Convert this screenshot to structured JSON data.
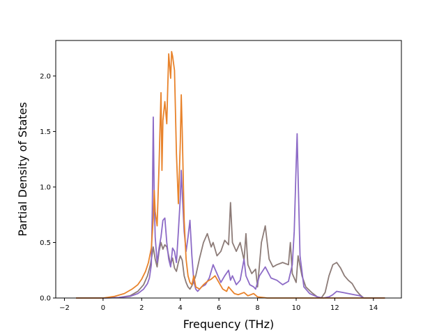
{
  "chart_data": {
    "type": "line",
    "xlabel": "Frequency (THz)",
    "ylabel": "Partial Density of States",
    "xlim": [
      -2.45,
      15.45
    ],
    "ylim": [
      0.0,
      2.32
    ],
    "grid": false,
    "xticks": [
      {
        "value": -2,
        "label": "−2"
      },
      {
        "value": 0,
        "label": "0"
      },
      {
        "value": 2,
        "label": "2"
      },
      {
        "value": 4,
        "label": "4"
      },
      {
        "value": 6,
        "label": "6"
      },
      {
        "value": 8,
        "label": "8"
      },
      {
        "value": 10,
        "label": "10"
      },
      {
        "value": 12,
        "label": "12"
      },
      {
        "value": 14,
        "label": "14"
      }
    ],
    "yticks": [
      {
        "value": 0.0,
        "label": "0.0"
      },
      {
        "value": 0.5,
        "label": "0.5"
      },
      {
        "value": 1.0,
        "label": "1.0"
      },
      {
        "value": 1.5,
        "label": "1.5"
      },
      {
        "value": 2.0,
        "label": "2.0"
      }
    ],
    "series": [
      {
        "color": "#8c7b77",
        "x": [
          -1.4,
          0,
          0.8,
          1.4,
          1.8,
          2.1,
          2.3,
          2.45,
          2.55,
          2.6,
          2.7,
          2.8,
          2.9,
          3.0,
          3.1,
          3.2,
          3.3,
          3.4,
          3.5,
          3.6,
          3.7,
          3.8,
          3.9,
          4.0,
          4.1,
          4.2,
          4.3,
          4.4,
          4.5,
          4.6,
          4.7,
          4.8,
          5.0,
          5.2,
          5.4,
          5.6,
          5.7,
          5.9,
          6.1,
          6.3,
          6.5,
          6.6,
          6.7,
          6.9,
          7.1,
          7.3,
          7.4,
          7.5,
          7.7,
          7.9,
          8.0,
          8.2,
          8.4,
          8.6,
          8.8,
          9.0,
          9.3,
          9.6,
          9.7,
          9.8,
          9.9,
          10.0,
          10.1,
          10.3,
          10.5,
          10.8,
          11.1,
          11.3,
          11.5,
          11.7,
          11.9,
          12.1,
          12.3,
          12.5,
          12.7,
          12.9,
          13.1,
          13.3,
          13.5,
          14.6
        ],
        "y": [
          0,
          0,
          0.004,
          0.02,
          0.06,
          0.12,
          0.2,
          0.3,
          0.4,
          0.46,
          0.35,
          0.28,
          0.42,
          0.5,
          0.44,
          0.48,
          0.46,
          0.38,
          0.3,
          0.36,
          0.27,
          0.24,
          0.32,
          0.38,
          0.34,
          0.2,
          0.14,
          0.1,
          0.08,
          0.11,
          0.15,
          0.2,
          0.36,
          0.5,
          0.58,
          0.46,
          0.5,
          0.38,
          0.42,
          0.52,
          0.48,
          0.86,
          0.5,
          0.42,
          0.5,
          0.34,
          0.58,
          0.3,
          0.22,
          0.26,
          0.1,
          0.5,
          0.65,
          0.35,
          0.28,
          0.3,
          0.32,
          0.3,
          0.5,
          0.22,
          0.18,
          0.14,
          0.38,
          0.2,
          0.1,
          0.05,
          0.01,
          0.0,
          0.05,
          0.2,
          0.3,
          0.32,
          0.27,
          0.2,
          0.16,
          0.13,
          0.07,
          0.03,
          0.0,
          0.0
        ]
      },
      {
        "color": "#8c6ac6",
        "x": [
          -1.4,
          0,
          0.8,
          1.4,
          1.8,
          2.1,
          2.3,
          2.4,
          2.5,
          2.55,
          2.6,
          2.65,
          2.7,
          2.8,
          2.9,
          3.0,
          3.1,
          3.2,
          3.3,
          3.4,
          3.5,
          3.6,
          3.7,
          3.8,
          3.9,
          4.0,
          4.05,
          4.1,
          4.2,
          4.3,
          4.4,
          4.5,
          4.6,
          4.7,
          4.8,
          4.9,
          5.1,
          5.3,
          5.5,
          5.7,
          5.9,
          6.1,
          6.3,
          6.5,
          6.6,
          6.7,
          6.9,
          7.1,
          7.3,
          7.4,
          7.6,
          7.8,
          7.9,
          8.1,
          8.4,
          8.7,
          9.0,
          9.3,
          9.6,
          9.8,
          9.9,
          10.0,
          10.05,
          10.1,
          10.2,
          10.4,
          10.7,
          11.1,
          11.4,
          11.7,
          11.9,
          12.1,
          12.4,
          12.7,
          13.0,
          13.3,
          13.5,
          14.6
        ],
        "y": [
          0,
          0,
          0.004,
          0.015,
          0.04,
          0.08,
          0.13,
          0.18,
          0.3,
          0.8,
          1.63,
          0.9,
          0.55,
          0.32,
          0.45,
          0.55,
          0.7,
          0.72,
          0.5,
          0.35,
          0.28,
          0.45,
          0.42,
          0.32,
          0.6,
          0.9,
          1.15,
          0.95,
          0.6,
          0.42,
          0.55,
          0.7,
          0.38,
          0.15,
          0.08,
          0.06,
          0.1,
          0.12,
          0.18,
          0.3,
          0.22,
          0.14,
          0.2,
          0.25,
          0.16,
          0.2,
          0.12,
          0.16,
          0.35,
          0.2,
          0.12,
          0.1,
          0.08,
          0.2,
          0.28,
          0.18,
          0.16,
          0.12,
          0.15,
          0.3,
          0.6,
          1.2,
          1.48,
          1.1,
          0.38,
          0.1,
          0.04,
          0.01,
          0.0,
          0.01,
          0.03,
          0.06,
          0.05,
          0.04,
          0.03,
          0.02,
          0.0,
          0.0
        ]
      },
      {
        "color": "#e8822a",
        "x": [
          -1.4,
          0,
          0.6,
          1.1,
          1.5,
          1.8,
          2.0,
          2.2,
          2.35,
          2.5,
          2.6,
          2.65,
          2.7,
          2.8,
          2.9,
          3.0,
          3.05,
          3.1,
          3.2,
          3.3,
          3.35,
          3.4,
          3.5,
          3.55,
          3.6,
          3.7,
          3.8,
          3.9,
          4.0,
          4.05,
          4.1,
          4.2,
          4.3,
          4.4,
          4.5,
          4.6,
          4.7,
          4.8,
          5.0,
          5.2,
          5.4,
          5.6,
          5.8,
          6.0,
          6.2,
          6.4,
          6.5,
          6.6,
          6.8,
          7.0,
          7.3,
          7.5,
          7.8,
          8.0,
          8.5,
          9.0,
          10.0,
          14.6
        ],
        "y": [
          0,
          0.0,
          0.015,
          0.04,
          0.08,
          0.12,
          0.17,
          0.24,
          0.32,
          0.45,
          0.72,
          0.97,
          0.78,
          0.65,
          1.2,
          1.85,
          1.15,
          1.6,
          1.77,
          1.57,
          1.9,
          2.2,
          1.98,
          2.22,
          2.18,
          2.05,
          1.3,
          0.85,
          1.4,
          1.83,
          1.5,
          0.7,
          0.35,
          0.2,
          0.14,
          0.12,
          0.2,
          0.1,
          0.08,
          0.12,
          0.15,
          0.17,
          0.2,
          0.14,
          0.08,
          0.06,
          0.1,
          0.08,
          0.04,
          0.03,
          0.05,
          0.02,
          0.04,
          0.01,
          0.0,
          0.0,
          0.0,
          0.0
        ]
      }
    ]
  }
}
